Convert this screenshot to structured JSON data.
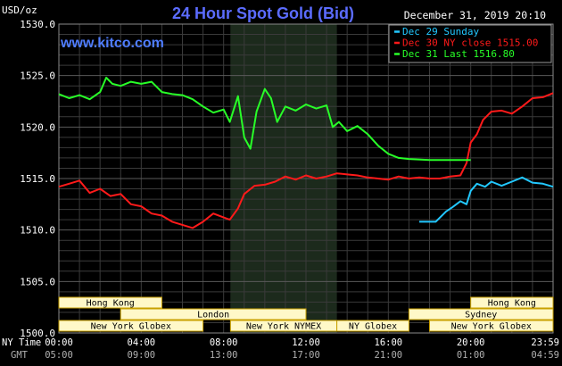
{
  "title": "24 Hour Spot Gold (Bid)",
  "unit_label": "USD/oz",
  "datetime": "December 31, 2019 20:10",
  "site": "www.kitco.com",
  "colors": {
    "background": "#000000",
    "grid": "#3a3a3a",
    "title": "#5b6cff",
    "site": "#4f7dff",
    "text": "#ffffff",
    "session_shade": "#1c2a1c",
    "session_bar": "#fff8c8",
    "session_border": "#c8a000",
    "series_cyan": "#22c8ff",
    "series_red": "#ff1a1a",
    "series_green": "#28ff28"
  },
  "markets": [
    {
      "name": "Hong Kong",
      "row": 0,
      "start": "00:00",
      "end": "05:00"
    },
    {
      "name": "London",
      "row": 1,
      "start": "03:00",
      "end": "12:00"
    },
    {
      "name": "New York Globex",
      "row": 2,
      "start": "00:00",
      "end": "07:00"
    },
    {
      "name": "New York NYMEX",
      "row": 2,
      "start": "08:20",
      "end": "13:30"
    },
    {
      "name": "NY Globex",
      "row": 2,
      "start": "13:30",
      "end": "17:00"
    },
    {
      "name": "Hong Kong",
      "row": 0,
      "start": "20:00",
      "end": "24:00"
    },
    {
      "name": "Sydney",
      "row": 1,
      "start": "17:00",
      "end": "24:00"
    },
    {
      "name": "New York Globex",
      "row": 2,
      "start": "18:00",
      "end": "24:00"
    }
  ],
  "time_axis": {
    "ny_label": "NY Time",
    "gmt_label": "GMT",
    "ny_ticks": [
      "00:00",
      "04:00",
      "08:00",
      "12:00",
      "16:00",
      "20:00",
      "23:59"
    ],
    "gmt_ticks": [
      "05:00",
      "09:00",
      "13:00",
      "17:00",
      "21:00",
      "01:00",
      "04:59"
    ]
  },
  "chart_data": {
    "type": "line",
    "title": "24 Hour Spot Gold (Bid)",
    "ylabel": "USD/oz",
    "xlabel": "NY Time",
    "ylim": [
      1500,
      1530
    ],
    "xlim_hours": [
      0,
      24
    ],
    "yticks": [
      "1500.0",
      "1505.0",
      "1510.0",
      "1515.0",
      "1520.0",
      "1525.0",
      "1530.0"
    ],
    "grid": true,
    "legend_position": "top-right",
    "shaded_session_hours": [
      8.33,
      13.5
    ],
    "series": [
      {
        "name": "Dec 29 Sunday",
        "color": "#22c8ff",
        "x": [
          17.5,
          18.3,
          18.8,
          19.1,
          19.5,
          19.8,
          20.0,
          20.3,
          20.7,
          21.0,
          21.5,
          22.0,
          22.5,
          23.0,
          23.5,
          24.0
        ],
        "y": [
          1510.8,
          1510.8,
          1511.8,
          1512.2,
          1512.8,
          1512.5,
          1513.8,
          1514.5,
          1514.2,
          1514.7,
          1514.3,
          1514.7,
          1515.1,
          1514.6,
          1514.5,
          1514.2
        ]
      },
      {
        "name": "Dec 30 NY close 1515.00",
        "color": "#ff1a1a",
        "x": [
          0,
          0.5,
          1.0,
          1.5,
          2.0,
          2.5,
          3.0,
          3.5,
          4.0,
          4.5,
          5.0,
          5.5,
          6.0,
          6.5,
          7.0,
          7.5,
          7.9,
          8.3,
          8.7,
          9.0,
          9.5,
          10.0,
          10.5,
          11.0,
          11.5,
          12.0,
          12.5,
          13.0,
          13.5,
          14.0,
          14.5,
          15.0,
          15.5,
          16.0,
          16.5,
          17.0,
          17.5,
          18.0,
          18.5,
          19.0,
          19.5,
          19.8,
          20.0,
          20.3,
          20.6,
          21.0,
          21.5,
          22.0,
          22.5,
          23.0,
          23.5,
          24.0
        ],
        "y": [
          1514.2,
          1514.5,
          1514.8,
          1513.6,
          1514.0,
          1513.3,
          1513.5,
          1512.5,
          1512.3,
          1511.6,
          1511.4,
          1510.8,
          1510.5,
          1510.2,
          1510.8,
          1511.6,
          1511.3,
          1511.0,
          1512.1,
          1513.5,
          1514.3,
          1514.4,
          1514.7,
          1515.2,
          1514.9,
          1515.3,
          1515.0,
          1515.2,
          1515.5,
          1515.4,
          1515.3,
          1515.1,
          1515.0,
          1514.9,
          1515.2,
          1515.0,
          1515.1,
          1515.0,
          1515.0,
          1515.2,
          1515.3,
          1516.5,
          1518.5,
          1519.3,
          1520.7,
          1521.5,
          1521.6,
          1521.3,
          1522.0,
          1522.8,
          1522.9,
          1523.3
        ]
      },
      {
        "name": "Dec 31 Last 1516.80",
        "color": "#28ff28",
        "x": [
          0,
          0.5,
          1.0,
          1.5,
          2.0,
          2.3,
          2.6,
          3.0,
          3.5,
          4.0,
          4.5,
          5.0,
          5.5,
          6.0,
          6.5,
          7.0,
          7.5,
          8.0,
          8.3,
          8.7,
          9.0,
          9.3,
          9.6,
          10.0,
          10.3,
          10.6,
          11.0,
          11.5,
          12.0,
          12.5,
          13.0,
          13.3,
          13.6,
          14.0,
          14.5,
          15.0,
          15.5,
          16.0,
          16.5,
          17.0,
          18.0,
          19.0,
          20.0
        ],
        "y": [
          1523.2,
          1522.8,
          1523.1,
          1522.7,
          1523.4,
          1524.8,
          1524.2,
          1524.0,
          1524.4,
          1524.2,
          1524.4,
          1523.4,
          1523.2,
          1523.1,
          1522.7,
          1522.0,
          1521.4,
          1521.7,
          1520.5,
          1523.0,
          1519.0,
          1517.9,
          1521.5,
          1523.7,
          1522.8,
          1520.5,
          1522.0,
          1521.6,
          1522.2,
          1521.8,
          1522.1,
          1520.0,
          1520.5,
          1519.6,
          1520.1,
          1519.3,
          1518.2,
          1517.4,
          1517.0,
          1516.9,
          1516.8,
          1516.8,
          1516.8
        ]
      }
    ]
  }
}
